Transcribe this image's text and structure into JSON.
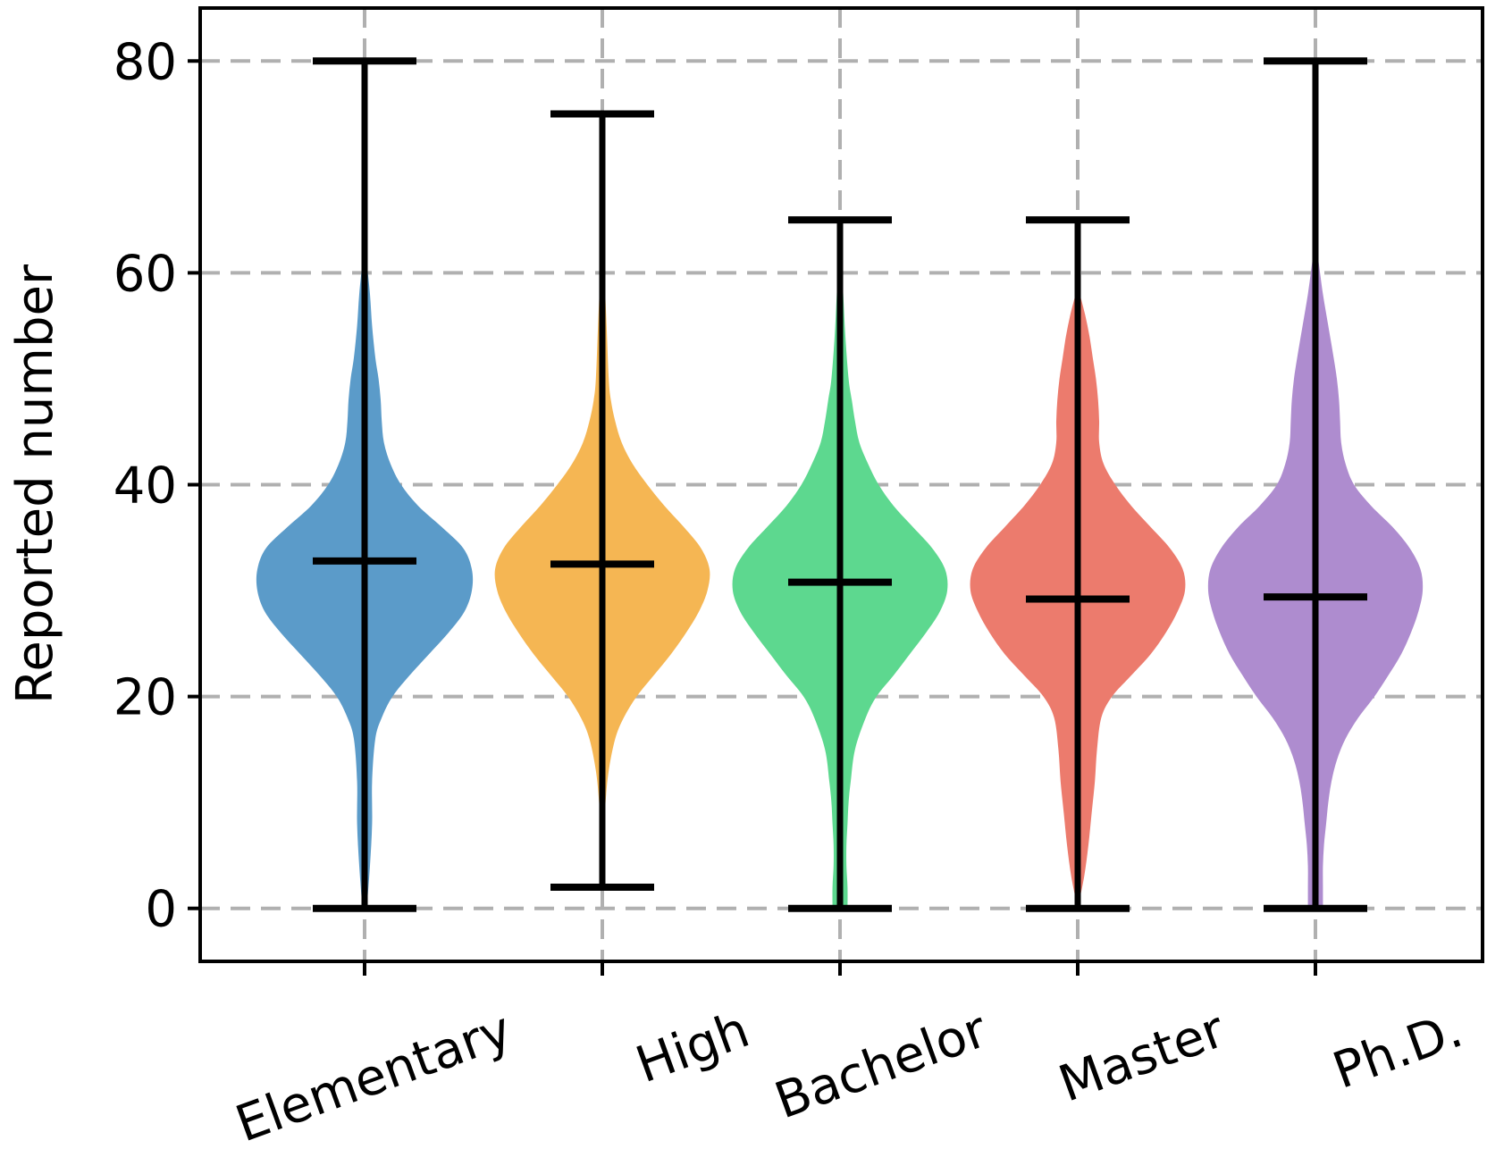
{
  "chart_data": {
    "type": "violin",
    "categories": [
      "Elementary",
      "High",
      "Bachelor",
      "Master",
      "Ph.D."
    ],
    "ylabel": "Reported number",
    "xlabel": "",
    "ylim": [
      -5,
      85
    ],
    "yticks": [
      "0",
      "20",
      "40",
      "60",
      "80"
    ],
    "grid": true,
    "colors": [
      "#5b9bc9",
      "#f5b653",
      "#5dd88f",
      "#ec7b6d",
      "#ae8ccf"
    ],
    "series": [
      {
        "category": "Elementary",
        "min": 0,
        "max": 80,
        "median": 32.8,
        "density": [
          [
            0,
            0.02
          ],
          [
            4,
            0.05
          ],
          [
            8,
            0.07
          ],
          [
            12,
            0.07
          ],
          [
            16,
            0.1
          ],
          [
            18,
            0.16
          ],
          [
            20,
            0.26
          ],
          [
            22,
            0.42
          ],
          [
            24,
            0.6
          ],
          [
            26,
            0.78
          ],
          [
            28,
            0.93
          ],
          [
            30,
            1.0
          ],
          [
            32,
            1.0
          ],
          [
            34,
            0.92
          ],
          [
            36,
            0.72
          ],
          [
            38,
            0.5
          ],
          [
            40,
            0.34
          ],
          [
            42,
            0.24
          ],
          [
            44,
            0.18
          ],
          [
            46,
            0.16
          ],
          [
            48,
            0.15
          ],
          [
            50,
            0.13
          ],
          [
            52,
            0.1
          ],
          [
            55,
            0.07
          ],
          [
            58,
            0.05
          ],
          [
            61,
            0.02
          ],
          [
            63,
            0.0
          ]
        ]
      },
      {
        "category": "High",
        "min": 2,
        "max": 75,
        "median": 32.5,
        "density": [
          [
            2,
            0.0
          ],
          [
            6,
            0.01
          ],
          [
            10,
            0.03
          ],
          [
            13,
            0.06
          ],
          [
            16,
            0.12
          ],
          [
            18,
            0.2
          ],
          [
            20,
            0.32
          ],
          [
            22,
            0.48
          ],
          [
            24,
            0.64
          ],
          [
            26,
            0.78
          ],
          [
            28,
            0.9
          ],
          [
            30,
            0.98
          ],
          [
            32,
            1.0
          ],
          [
            34,
            0.92
          ],
          [
            36,
            0.76
          ],
          [
            38,
            0.58
          ],
          [
            40,
            0.42
          ],
          [
            42,
            0.28
          ],
          [
            44,
            0.18
          ],
          [
            46,
            0.12
          ],
          [
            48,
            0.08
          ],
          [
            50,
            0.06
          ],
          [
            55,
            0.04
          ],
          [
            60,
            0.02
          ],
          [
            65,
            0.01
          ],
          [
            69,
            0.0
          ]
        ]
      },
      {
        "category": "Bachelor",
        "min": 0,
        "max": 65,
        "median": 30.8,
        "density": [
          [
            0,
            0.07
          ],
          [
            2,
            0.07
          ],
          [
            4,
            0.06
          ],
          [
            6,
            0.06
          ],
          [
            8,
            0.07
          ],
          [
            10,
            0.08
          ],
          [
            12,
            0.1
          ],
          [
            15,
            0.14
          ],
          [
            18,
            0.24
          ],
          [
            20,
            0.34
          ],
          [
            22,
            0.5
          ],
          [
            24,
            0.65
          ],
          [
            26,
            0.8
          ],
          [
            28,
            0.93
          ],
          [
            30,
            1.0
          ],
          [
            32,
            0.98
          ],
          [
            34,
            0.86
          ],
          [
            36,
            0.68
          ],
          [
            38,
            0.5
          ],
          [
            40,
            0.36
          ],
          [
            42,
            0.26
          ],
          [
            44,
            0.18
          ],
          [
            46,
            0.14
          ],
          [
            48,
            0.11
          ],
          [
            50,
            0.08
          ],
          [
            54,
            0.05
          ],
          [
            58,
            0.03
          ],
          [
            62,
            0.01
          ],
          [
            65,
            0.0
          ]
        ]
      },
      {
        "category": "Master",
        "min": 0,
        "max": 65,
        "median": 29.2,
        "density": [
          [
            0,
            0.0
          ],
          [
            3,
            0.06
          ],
          [
            6,
            0.1
          ],
          [
            9,
            0.13
          ],
          [
            12,
            0.16
          ],
          [
            15,
            0.18
          ],
          [
            18,
            0.22
          ],
          [
            20,
            0.32
          ],
          [
            22,
            0.5
          ],
          [
            24,
            0.68
          ],
          [
            26,
            0.82
          ],
          [
            28,
            0.93
          ],
          [
            30,
            1.0
          ],
          [
            32,
            0.98
          ],
          [
            34,
            0.86
          ],
          [
            36,
            0.68
          ],
          [
            38,
            0.5
          ],
          [
            40,
            0.35
          ],
          [
            42,
            0.24
          ],
          [
            44,
            0.2
          ],
          [
            46,
            0.2
          ],
          [
            48,
            0.19
          ],
          [
            50,
            0.17
          ],
          [
            52,
            0.14
          ],
          [
            54,
            0.11
          ],
          [
            56,
            0.07
          ],
          [
            58,
            0.02
          ],
          [
            59,
            0.0
          ]
        ]
      },
      {
        "category": "Ph.D.",
        "min": 0,
        "max": 80,
        "median": 29.4,
        "density": [
          [
            0,
            0.07
          ],
          [
            2,
            0.07
          ],
          [
            4,
            0.07
          ],
          [
            6,
            0.08
          ],
          [
            8,
            0.1
          ],
          [
            10,
            0.12
          ],
          [
            12,
            0.15
          ],
          [
            14,
            0.2
          ],
          [
            16,
            0.28
          ],
          [
            18,
            0.4
          ],
          [
            20,
            0.55
          ],
          [
            22,
            0.68
          ],
          [
            24,
            0.8
          ],
          [
            26,
            0.89
          ],
          [
            28,
            0.96
          ],
          [
            30,
            1.0
          ],
          [
            32,
            0.98
          ],
          [
            34,
            0.88
          ],
          [
            36,
            0.72
          ],
          [
            38,
            0.52
          ],
          [
            40,
            0.36
          ],
          [
            42,
            0.28
          ],
          [
            44,
            0.24
          ],
          [
            46,
            0.23
          ],
          [
            48,
            0.22
          ],
          [
            50,
            0.2
          ],
          [
            52,
            0.17
          ],
          [
            55,
            0.12
          ],
          [
            58,
            0.07
          ],
          [
            61,
            0.03
          ],
          [
            63,
            0.0
          ]
        ]
      }
    ]
  }
}
